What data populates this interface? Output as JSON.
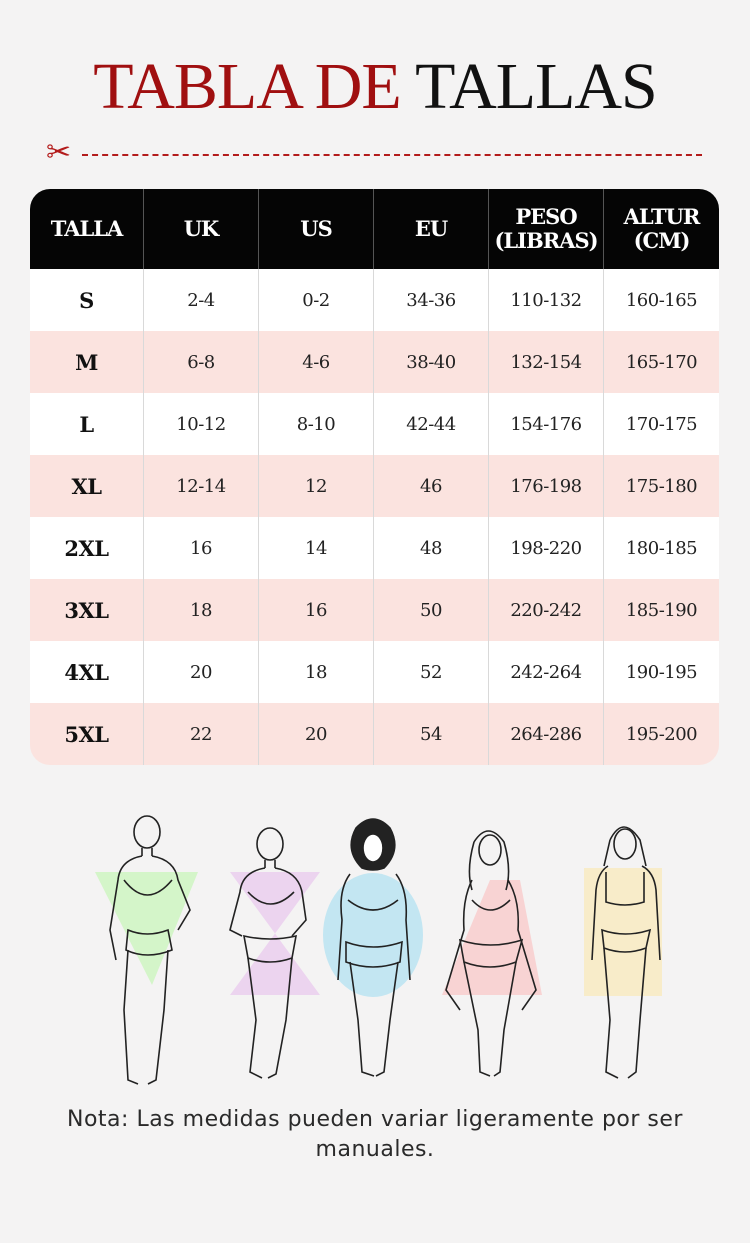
{
  "title": {
    "part1": "TABLA DE",
    "part2": "TALLAS"
  },
  "cut_icon": "scissors-icon",
  "table": {
    "headers": [
      "TALLA",
      "UK",
      "US",
      "EU",
      "PESO\n(LIBRAS)",
      "ALTUR\n(CM)"
    ],
    "rows": [
      [
        "S",
        "2-4",
        "0-2",
        "34-36",
        "110-132",
        "160-165"
      ],
      [
        "M",
        "6-8",
        "4-6",
        "38-40",
        "132-154",
        "165-170"
      ],
      [
        "L",
        "10-12",
        "8-10",
        "42-44",
        "154-176",
        "170-175"
      ],
      [
        "XL",
        "12-14",
        "12",
        "46",
        "176-198",
        "175-180"
      ],
      [
        "2XL",
        "16",
        "14",
        "48",
        "198-220",
        "180-185"
      ],
      [
        "3XL",
        "18",
        "16",
        "50",
        "220-242",
        "185-190"
      ],
      [
        "4XL",
        "20",
        "18",
        "52",
        "242-264",
        "190-195"
      ],
      [
        "5XL",
        "22",
        "20",
        "54",
        "264-286",
        "195-200"
      ]
    ]
  },
  "body_shapes": [
    {
      "name": "inverted-triangle",
      "color": "#d4f5c9"
    },
    {
      "name": "hourglass",
      "color": "#ecd4ef"
    },
    {
      "name": "apple",
      "color": "#c3e6f2"
    },
    {
      "name": "pear",
      "color": "#f8d3d3"
    },
    {
      "name": "rectangle",
      "color": "#f8ecc9"
    }
  ],
  "colors": {
    "accent": "#a00f10",
    "header_bg": "#050505",
    "row_alt": "#fbe3df"
  },
  "note": "Nota: Las medidas pueden variar ligeramente por ser manuales."
}
